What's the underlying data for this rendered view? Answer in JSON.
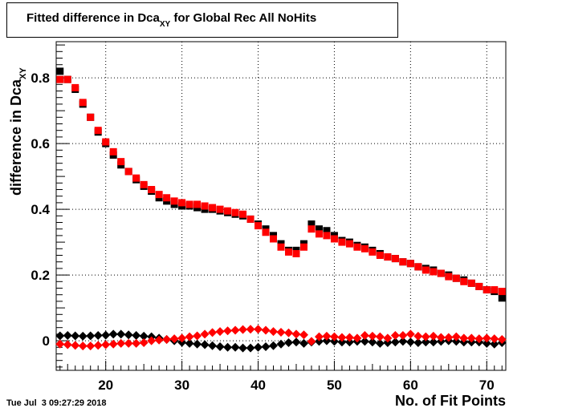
{
  "title": {
    "main": "Fitted difference in Dca",
    "sub": "XY",
    "rest": " for Global Rec All NoHits"
  },
  "xlabel": "No. of Fit Points",
  "ylabel": {
    "main": "difference in Dca",
    "sub": "XY"
  },
  "timestamp": "Tue Jul  3 09:27:29 2018",
  "colors": {
    "black": "#000000",
    "red": "#ff0000"
  },
  "chart_data": {
    "type": "scatter",
    "xlim": [
      13.5,
      72.5
    ],
    "ylim": [
      -0.09,
      0.91
    ],
    "grid": true,
    "xticks": [
      20,
      30,
      40,
      50,
      60,
      70
    ],
    "yticks": [
      0,
      0.2,
      0.4,
      0.6,
      0.8
    ],
    "ytick_labels": [
      "0",
      "0.2",
      "0.4",
      "0.6",
      "0.8"
    ],
    "x": [
      14,
      15,
      16,
      17,
      18,
      19,
      20,
      21,
      22,
      23,
      24,
      25,
      26,
      27,
      28,
      29,
      30,
      31,
      32,
      33,
      34,
      35,
      36,
      37,
      38,
      39,
      40,
      41,
      42,
      43,
      44,
      45,
      46,
      47,
      48,
      49,
      50,
      51,
      52,
      53,
      54,
      55,
      56,
      57,
      58,
      59,
      60,
      61,
      62,
      63,
      64,
      65,
      66,
      67,
      68,
      69,
      70,
      71,
      72
    ],
    "series": [
      {
        "marker": "square",
        "color": "#000000",
        "values": [
          0.82,
          0.795,
          0.765,
          0.72,
          0.68,
          0.635,
          0.6,
          0.565,
          0.535,
          0.515,
          0.49,
          0.47,
          0.455,
          0.435,
          0.425,
          0.415,
          0.41,
          0.41,
          0.405,
          0.4,
          0.4,
          0.395,
          0.39,
          0.385,
          0.38,
          0.37,
          0.355,
          0.34,
          0.32,
          0.295,
          0.275,
          0.275,
          0.295,
          0.355,
          0.34,
          0.335,
          0.32,
          0.305,
          0.3,
          0.29,
          0.285,
          0.275,
          0.265,
          0.255,
          0.25,
          0.24,
          0.235,
          0.225,
          0.22,
          0.215,
          0.205,
          0.2,
          0.19,
          0.185,
          0.175,
          0.165,
          0.155,
          0.15,
          0.13
        ]
      },
      {
        "marker": "square",
        "color": "#ff0000",
        "values": [
          0.795,
          0.795,
          0.77,
          0.725,
          0.68,
          0.64,
          0.605,
          0.575,
          0.545,
          0.515,
          0.495,
          0.475,
          0.46,
          0.445,
          0.435,
          0.425,
          0.42,
          0.415,
          0.415,
          0.41,
          0.405,
          0.4,
          0.395,
          0.39,
          0.385,
          0.37,
          0.35,
          0.33,
          0.31,
          0.285,
          0.27,
          0.265,
          0.285,
          0.34,
          0.325,
          0.32,
          0.31,
          0.3,
          0.295,
          0.285,
          0.28,
          0.27,
          0.26,
          0.255,
          0.25,
          0.24,
          0.235,
          0.225,
          0.215,
          0.21,
          0.205,
          0.195,
          0.19,
          0.18,
          0.175,
          0.165,
          0.155,
          0.155,
          0.15
        ]
      },
      {
        "marker": "diamond",
        "color": "#000000",
        "values": [
          0.015,
          0.016,
          0.015,
          0.014,
          0.015,
          0.016,
          0.017,
          0.02,
          0.02,
          0.018,
          0.016,
          0.014,
          0.012,
          0.008,
          0.004,
          0.0,
          -0.005,
          -0.008,
          -0.01,
          -0.012,
          -0.015,
          -0.018,
          -0.02,
          -0.02,
          -0.022,
          -0.022,
          -0.02,
          -0.018,
          -0.015,
          -0.01,
          -0.006,
          -0.004,
          -0.008,
          -0.004,
          -0.002,
          0.0,
          -0.002,
          -0.004,
          -0.004,
          -0.002,
          -0.002,
          -0.004,
          -0.008,
          -0.006,
          -0.004,
          -0.002,
          -0.004,
          -0.006,
          -0.004,
          -0.004,
          -0.002,
          0.0,
          -0.002,
          -0.004,
          -0.004,
          -0.004,
          -0.008,
          -0.01,
          -0.006
        ]
      },
      {
        "marker": "diamond",
        "color": "#ff0000",
        "values": [
          -0.01,
          -0.012,
          -0.014,
          -0.016,
          -0.016,
          -0.014,
          -0.012,
          -0.01,
          -0.008,
          -0.008,
          -0.008,
          -0.006,
          0.0,
          0.002,
          0.004,
          0.006,
          0.008,
          0.012,
          0.015,
          0.02,
          0.025,
          0.028,
          0.03,
          0.032,
          0.034,
          0.035,
          0.035,
          0.032,
          0.028,
          0.026,
          0.024,
          0.02,
          0.018,
          -0.002,
          0.012,
          0.014,
          0.012,
          0.01,
          0.01,
          0.008,
          0.016,
          0.014,
          0.012,
          0.008,
          0.016,
          0.016,
          0.02,
          0.014,
          0.012,
          0.014,
          0.01,
          0.01,
          0.012,
          0.008,
          0.008,
          0.006,
          0.008,
          0.006,
          0.004
        ]
      }
    ]
  }
}
